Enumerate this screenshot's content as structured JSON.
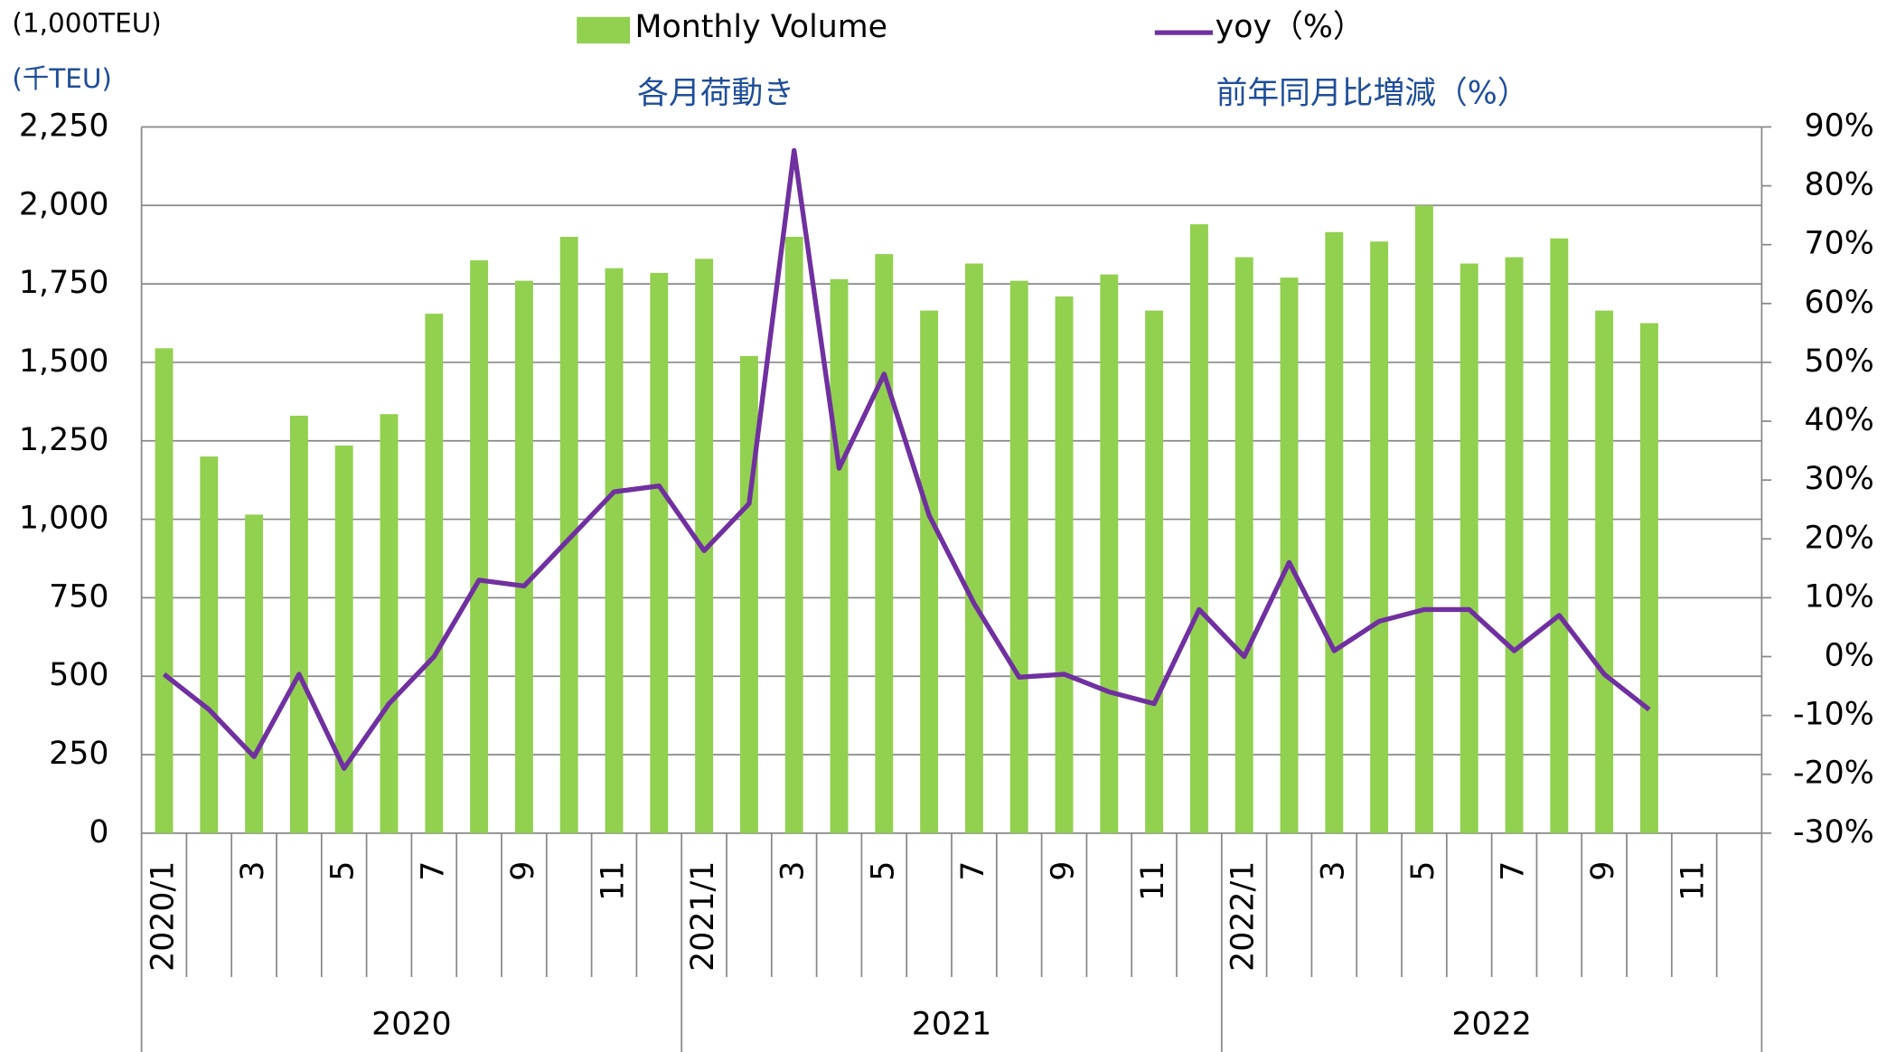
{
  "chart_data": {
    "type": "bar_line",
    "unit_label": "(1,000TEU)",
    "unit_label_ja": "(千TEU)",
    "subtitle_left": "各月荷動き",
    "subtitle_right": "前年同月比増減（%）",
    "categories": [
      "2020/1",
      null,
      "3",
      null,
      "5",
      null,
      "7",
      null,
      "9",
      null,
      "11",
      null,
      "2021/1",
      null,
      "3",
      null,
      "5",
      null,
      "7",
      null,
      "9",
      null,
      "11",
      null,
      "2022/1",
      null,
      "3",
      null,
      "5",
      null,
      "7",
      null,
      "9",
      null,
      "11",
      null
    ],
    "year_labels": [
      "2020",
      "2021",
      "2022"
    ],
    "series": [
      {
        "name": "Monthly Volume",
        "type": "bar",
        "color": "#92d050",
        "values": [
          1545,
          1200,
          1015,
          1330,
          1235,
          1335,
          1655,
          1825,
          1760,
          1900,
          1800,
          1785,
          1830,
          1520,
          1900,
          1765,
          1845,
          1665,
          1815,
          1760,
          1710,
          1780,
          1665,
          1940,
          1835,
          1770,
          1915,
          1885,
          2000,
          1815,
          1835,
          1895,
          1665,
          1625,
          null,
          null
        ]
      },
      {
        "name": "yoy（%）",
        "type": "line",
        "axis": "y2",
        "color": "#7030a0",
        "values": [
          -3,
          -9,
          -17,
          -3,
          -19,
          -8,
          0,
          13,
          12,
          20,
          28,
          29,
          18,
          26,
          86,
          32,
          48,
          24,
          9,
          -3.5,
          -3,
          -6,
          -8,
          8,
          0,
          16,
          1,
          6,
          8,
          8,
          1,
          7,
          -3,
          -9,
          null,
          null
        ]
      }
    ],
    "ylim": [
      0,
      2250
    ],
    "yticks": [
      0,
      250,
      500,
      750,
      {
        "value": 1000,
        "label": "1,000"
      },
      {
        "value": 1250,
        "label": "1,250"
      },
      {
        "value": 1500,
        "label": "1,500"
      },
      {
        "value": 1750,
        "label": "1,750"
      },
      {
        "value": 2000,
        "label": "2,000"
      },
      {
        "value": 2250,
        "label": "2,250"
      }
    ],
    "y2lim": [
      -30,
      90
    ],
    "y2ticks": [
      {
        "value": -30,
        "label": "-30%"
      },
      {
        "value": -20,
        "label": "-20%"
      },
      {
        "value": -10,
        "label": "-10%"
      },
      {
        "value": 0,
        "label": "0%"
      },
      {
        "value": 10,
        "label": "10%"
      },
      {
        "value": 20,
        "label": "20%"
      },
      {
        "value": 30,
        "label": "30%"
      },
      {
        "value": 40,
        "label": "40%"
      },
      {
        "value": 50,
        "label": "50%"
      },
      {
        "value": 60,
        "label": "60%"
      },
      {
        "value": 70,
        "label": "70%"
      },
      {
        "value": 80,
        "label": "80%"
      },
      {
        "value": 90,
        "label": "90%"
      }
    ],
    "grid": true
  }
}
